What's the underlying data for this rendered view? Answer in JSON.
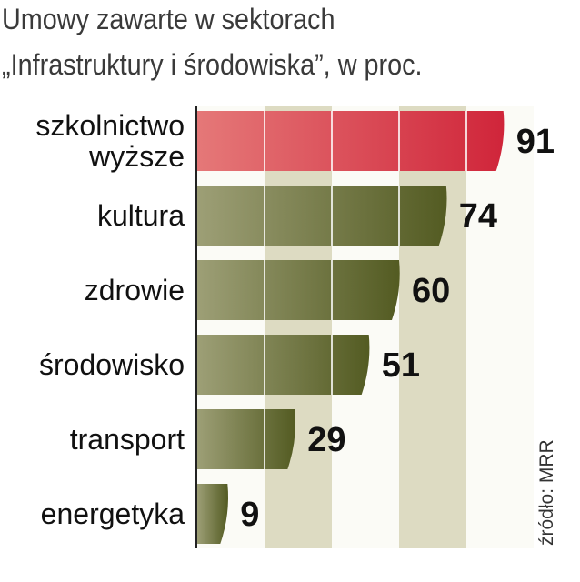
{
  "title": "Umowy zawarte w sektorach",
  "subtitle": "„Infrastruktury i środowiska”, w proc.",
  "source": "źródło: MRR",
  "chart_data": {
    "type": "bar",
    "orientation": "horizontal",
    "title": "Umowy zawarte w sektorach",
    "subtitle": "„Infrastruktury i środowiska”, w proc.",
    "categories": [
      [
        "szkolnictwo",
        "wyższe"
      ],
      [
        "kultura"
      ],
      [
        "zdrowie"
      ],
      [
        "środowisko"
      ],
      [
        "transport"
      ],
      [
        "energetyka"
      ]
    ],
    "values": [
      91,
      74,
      60,
      51,
      29,
      9
    ],
    "value_labels": [
      "91",
      "74",
      "60",
      "51",
      "29",
      "9"
    ],
    "xlim": [
      0,
      100
    ],
    "grid": true,
    "legend": "none",
    "colors": {
      "highlight_start": "#e57878",
      "highlight_end": "#d0253a",
      "bar_start": "#9d9f76",
      "bar_end": "#535b22",
      "band_light": "#dddbc2",
      "band_white": "#fbfbf6",
      "axis": "#222222",
      "text": "#111111"
    }
  }
}
